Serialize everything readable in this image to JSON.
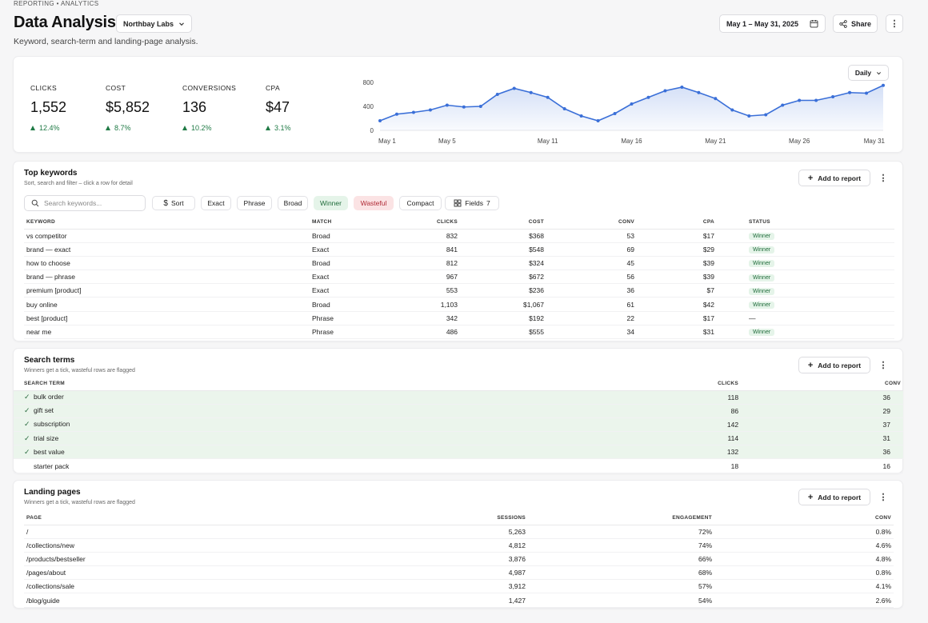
{
  "breadcrumb": "REPORTING • ANALYTICS",
  "header": {
    "title": "Data Analysis",
    "org": "Northbay Labs",
    "subtitle": "Keyword, search-term and landing-page analysis.",
    "date_range": "May 1 – May 31, 2025",
    "share_label": "Share",
    "more": "⋮"
  },
  "kpis": [
    {
      "label": "CLICKS",
      "value": "1,552",
      "delta": "12.4%"
    },
    {
      "label": "COST",
      "value": "$5,852",
      "delta": "8.7%"
    },
    {
      "label": "CONVERSIONS",
      "value": "136",
      "delta": "10.2%"
    },
    {
      "label": "CPA",
      "value": "$47",
      "delta": "3.1%"
    }
  ],
  "chart_data": {
    "type": "area",
    "granularity_label": "Daily",
    "x_ticks": [
      "May 1",
      "May 5",
      "May 11",
      "May 16",
      "May 21",
      "May 26",
      "May 31"
    ],
    "y_ticks": [
      "800",
      "400",
      "0"
    ],
    "ylim": [
      0,
      800
    ],
    "grid": false,
    "accent": "#3a6fd8",
    "x": [
      "May 1",
      "May 2",
      "May 3",
      "May 4",
      "May 5",
      "May 6",
      "May 7",
      "May 8",
      "May 9",
      "May 10",
      "May 11",
      "May 12",
      "May 13",
      "May 14",
      "May 15",
      "May 16",
      "May 17",
      "May 18",
      "May 19",
      "May 20",
      "May 21",
      "May 22",
      "May 23",
      "May 24",
      "May 25",
      "May 26",
      "May 27",
      "May 28",
      "May 29",
      "May 30",
      "May 31"
    ],
    "values": [
      160,
      270,
      300,
      340,
      420,
      390,
      400,
      600,
      700,
      630,
      550,
      360,
      240,
      160,
      280,
      440,
      550,
      660,
      720,
      630,
      530,
      340,
      240,
      260,
      420,
      500,
      500,
      560,
      630,
      620,
      750
    ]
  },
  "keywords": {
    "title": "Top keywords",
    "subtitle": "Sort, search and filter – click a row for detail",
    "add_label": "Add to report",
    "search_placeholder": "Search keywords...",
    "sort_label": "Sort",
    "filters": [
      "Exact",
      "Phrase",
      "Broad",
      "Winner",
      "Wasteful",
      "Compact"
    ],
    "fields_label": "Fields",
    "fields_count": "7",
    "columns": [
      "KEYWORD",
      "MATCH",
      "CLICKS",
      "COST",
      "CONV",
      "CPA",
      "STATUS"
    ],
    "rows": [
      {
        "keyword": "vs competitor",
        "match": "Broad",
        "clicks": "832",
        "cost": "$368",
        "conv": "53",
        "cpa": "$17",
        "status": "Winner"
      },
      {
        "keyword": "brand — exact",
        "match": "Exact",
        "clicks": "841",
        "cost": "$548",
        "conv": "69",
        "cpa": "$29",
        "status": "Winner"
      },
      {
        "keyword": "how to choose",
        "match": "Broad",
        "clicks": "812",
        "cost": "$324",
        "conv": "45",
        "cpa": "$39",
        "status": "Winner"
      },
      {
        "keyword": "brand — phrase",
        "match": "Exact",
        "clicks": "967",
        "cost": "$672",
        "conv": "56",
        "cpa": "$39",
        "status": "Winner"
      },
      {
        "keyword": "premium [product]",
        "match": "Exact",
        "clicks": "553",
        "cost": "$236",
        "conv": "36",
        "cpa": "$7",
        "status": "Winner"
      },
      {
        "keyword": "buy online",
        "match": "Broad",
        "clicks": "1,103",
        "cost": "$1,067",
        "conv": "61",
        "cpa": "$42",
        "status": "Winner"
      },
      {
        "keyword": "best [product]",
        "match": "Phrase",
        "clicks": "342",
        "cost": "$192",
        "conv": "22",
        "cpa": "$17",
        "status": "—"
      },
      {
        "keyword": "near me",
        "match": "Phrase",
        "clicks": "486",
        "cost": "$555",
        "conv": "34",
        "cpa": "$31",
        "status": "Winner"
      }
    ]
  },
  "search_terms": {
    "title": "Search terms",
    "subtitle": "Winners get a tick, wasteful rows are flagged",
    "add_label": "Add to report",
    "columns": [
      "SEARCH TERM",
      "CLICKS",
      "CONV"
    ],
    "rows": [
      {
        "term": "bulk order",
        "clicks": "118",
        "conv": "36",
        "winner": true
      },
      {
        "term": "gift set",
        "clicks": "86",
        "conv": "29",
        "winner": true
      },
      {
        "term": "subscription",
        "clicks": "142",
        "conv": "37",
        "winner": true
      },
      {
        "term": "trial size",
        "clicks": "114",
        "conv": "31",
        "winner": true
      },
      {
        "term": "best value",
        "clicks": "132",
        "conv": "36",
        "winner": true
      },
      {
        "term": "starter pack",
        "clicks": "18",
        "conv": "16",
        "winner": false
      }
    ]
  },
  "landing_pages": {
    "title": "Landing pages",
    "subtitle": "Winners get a tick, wasteful rows are flagged",
    "add_label": "Add to report",
    "columns": [
      "PAGE",
      "SESSIONS",
      "ENGAGEMENT",
      "CONV"
    ],
    "rows": [
      {
        "page": "/",
        "sessions": "5,263",
        "engagement": "72%",
        "conv": "0.8%"
      },
      {
        "page": "/collections/new",
        "sessions": "4,812",
        "engagement": "74%",
        "conv": "4.6%"
      },
      {
        "page": "/products/bestseller",
        "sessions": "3,876",
        "engagement": "66%",
        "conv": "4.8%"
      },
      {
        "page": "/pages/about",
        "sessions": "4,987",
        "engagement": "68%",
        "conv": "0.8%"
      },
      {
        "page": "/collections/sale",
        "sessions": "3,912",
        "engagement": "57%",
        "conv": "4.1%"
      },
      {
        "page": "/blog/guide",
        "sessions": "1,427",
        "engagement": "54%",
        "conv": "2.6%"
      }
    ]
  }
}
